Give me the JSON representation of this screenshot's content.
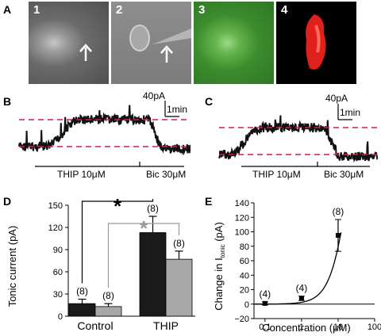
{
  "panels": {
    "A": {
      "letter": "A",
      "images": [
        "1",
        "2",
        "3",
        "4"
      ]
    },
    "B": {
      "letter": "B",
      "scale_current": "40pA",
      "scale_time": "1min",
      "drug1": "THIP 10μM",
      "drug2": "Bic 30μM"
    },
    "C": {
      "letter": "C",
      "scale_current": "40pA",
      "scale_time": "1min",
      "drug1": "THIP 10μM",
      "drug2": "Bic 30μM"
    },
    "D": {
      "letter": "D"
    },
    "E": {
      "letter": "E"
    }
  },
  "colors": {
    "trace": "#111111",
    "dashed": "#cc2244",
    "bar_dark": "#1a1a1a",
    "bar_gray": "#a8a8a8",
    "gray_bracket": "#999999",
    "green_fluor": "#3c8c2e",
    "red_fluor": "#e0201c"
  },
  "chart_data": [
    {
      "id": "D",
      "type": "bar",
      "categories": [
        "Control",
        "THIP"
      ],
      "series": [
        {
          "values": [
            17,
            113
          ],
          "errors": [
            6,
            22
          ],
          "n_labels": [
            "(8)",
            "(8)"
          ]
        },
        {
          "values": [
            13,
            77
          ],
          "errors": [
            4,
            11
          ],
          "n_labels": [
            "(8)",
            "(8)"
          ]
        }
      ],
      "ylabel": "Tonic current (pA)",
      "ylim": [
        0,
        150
      ],
      "yticks": [
        "0",
        "30",
        "60",
        "90",
        "120",
        "150"
      ],
      "significance": [
        "*",
        "*"
      ]
    },
    {
      "id": "E",
      "type": "scatter",
      "x": [
        0.1,
        1,
        10
      ],
      "y": [
        1,
        8,
        95
      ],
      "yerr": [
        2,
        3,
        22
      ],
      "n_labels": [
        "(4)",
        "(4)",
        "(8)"
      ],
      "xlabel_main": "Concentration (",
      "xlabel_unit": "μM)",
      "ylabel_main": "Change in I",
      "ylabel_sub": "tonic",
      "ylabel_unit": " (pA)",
      "xscale": "log",
      "xlim": [
        0.05,
        100
      ],
      "xticks": [
        "0.1",
        "1",
        "10",
        "100"
      ],
      "ylim": [
        -20,
        140
      ],
      "yticks": [
        "−20",
        "0",
        "20",
        "40",
        "60",
        "80",
        "100",
        "120",
        "140"
      ],
      "fit_curve": true
    }
  ]
}
